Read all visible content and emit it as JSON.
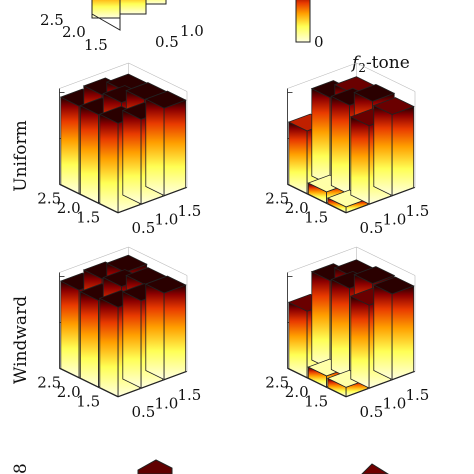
{
  "chart_data": {
    "type": "bar3d",
    "colormap": [
      "#ffffe0",
      "#ffff55",
      "#ff9f00",
      "#e83a00",
      "#8c0000",
      "#200000"
    ],
    "colorbar": {
      "min_label": "0"
    },
    "col_titles": [
      "",
      "f2-tone"
    ],
    "row_labels": [
      "",
      "Uniform",
      "Windward",
      ""
    ],
    "x_ticks": [
      "0.5",
      "1.0",
      "1.5"
    ],
    "y_ticks": [
      "2.5",
      "2.0",
      "1.5"
    ],
    "panels": [
      {
        "row": "Uniform",
        "column": 1,
        "heights": [
          [
            0.95,
            0.98,
            0.93
          ],
          [
            0.96,
            1.0,
            0.94
          ],
          [
            0.97,
            0.92,
            0.95
          ]
        ]
      },
      {
        "row": "Uniform",
        "column": 2,
        "heights": [
          [
            0.68,
            0.95,
            0.9
          ],
          [
            0.12,
            0.97,
            0.92
          ],
          [
            0.06,
            0.85,
            0.88
          ]
        ]
      },
      {
        "row": "Windward",
        "column": 1,
        "heights": [
          [
            0.95,
            0.98,
            0.96
          ],
          [
            0.94,
            1.0,
            0.93
          ],
          [
            0.97,
            0.95,
            0.94
          ]
        ]
      },
      {
        "row": "Windward",
        "column": 2,
        "heights": [
          [
            0.72,
            0.96,
            0.91
          ],
          [
            0.12,
            0.98,
            0.94
          ],
          [
            0.1,
            0.9,
            0.93
          ]
        ]
      }
    ]
  }
}
